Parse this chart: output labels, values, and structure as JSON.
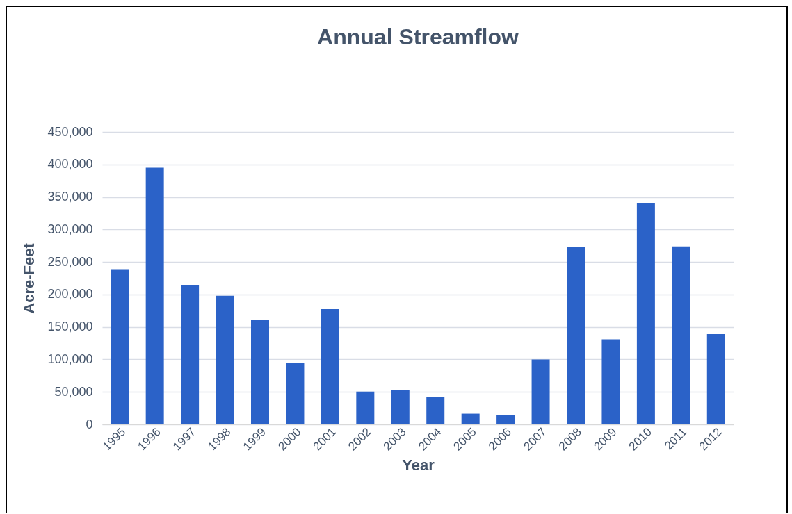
{
  "chart_data": {
    "type": "bar",
    "title": "Annual Streamflow",
    "xlabel": "Year",
    "ylabel": "Acre-Feet",
    "categories": [
      "1995",
      "1996",
      "1997",
      "1998",
      "1999",
      "2000",
      "2001",
      "2002",
      "2003",
      "2004",
      "2005",
      "2006",
      "2007",
      "2008",
      "2009",
      "2010",
      "2011",
      "2012"
    ],
    "values": [
      239000,
      395000,
      214000,
      198000,
      161000,
      94500,
      177500,
      50500,
      53000,
      42000,
      16500,
      14500,
      100000,
      273000,
      131000,
      341000,
      274000,
      139000
    ],
    "color": "#2b62c8",
    "ylim": [
      0,
      450000
    ],
    "yticks": [
      {
        "value": 0,
        "label": "0"
      },
      {
        "value": 50000,
        "label": "50,000"
      },
      {
        "value": 100000,
        "label": "100,000"
      },
      {
        "value": 150000,
        "label": "150,000"
      },
      {
        "value": 200000,
        "label": "200,000"
      },
      {
        "value": 250000,
        "label": "250,000"
      },
      {
        "value": 300000,
        "label": "300,000"
      },
      {
        "value": 350000,
        "label": "350,000"
      },
      {
        "value": 400000,
        "label": "400,000"
      },
      {
        "value": 450000,
        "label": "450,000"
      }
    ],
    "grid": "y"
  }
}
